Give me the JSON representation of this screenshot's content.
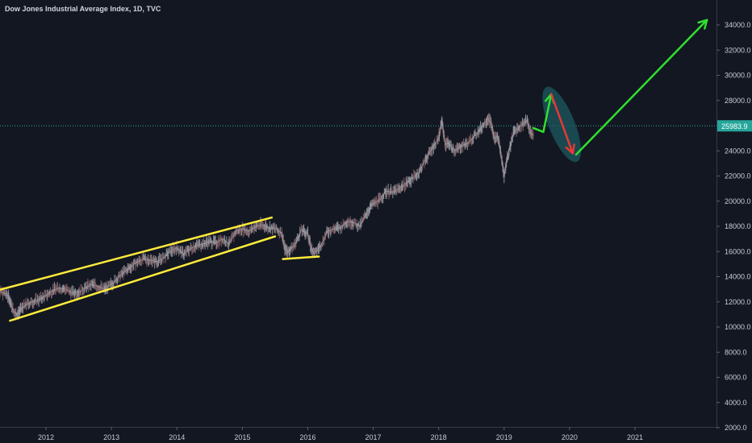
{
  "header": {
    "title": "Dow Jones Industrial Average Index, 1D, TVC"
  },
  "colors": {
    "background": "#131722",
    "axis_text": "#c8cbd3",
    "price_line": "#26a69a",
    "price_label_bg": "#26a69a",
    "candles": "#8f939c",
    "channel": "#ffeb3b",
    "arrow_up": "#2fe02f",
    "arrow_down": "#e53935",
    "ellipse": "#1e5a60"
  },
  "chart_data": {
    "type": "line",
    "title": "Dow Jones Industrial Average Index, 1D, TVC",
    "xlabel": "",
    "ylabel": "",
    "x_ticks": [
      "2012",
      "2013",
      "2014",
      "2015",
      "2016",
      "2017",
      "2018",
      "2019",
      "2020",
      "2021"
    ],
    "y_ticks": [
      "2000.0",
      "4000.0",
      "6000.0",
      "8000.0",
      "10000.0",
      "12000.0",
      "14000.0",
      "16000.0",
      "18000.0",
      "20000.0",
      "22000.0",
      "24000.0",
      "26000.0",
      "28000.0",
      "30000.0",
      "32000.0",
      "34000.0"
    ],
    "xlim": [
      2011.25,
      2022.2
    ],
    "ylim": [
      2000,
      35500
    ],
    "grid": false,
    "current_price": 25983.9,
    "current_price_label": "25983.9",
    "series": [
      {
        "points": [
          [
            2011.25,
            12500
          ],
          [
            2011.3,
            12800
          ],
          [
            2011.4,
            12600
          ],
          [
            2011.45,
            12100
          ],
          [
            2011.5,
            11300
          ],
          [
            2011.55,
            11000
          ],
          [
            2011.62,
            11400
          ],
          [
            2011.7,
            11800
          ],
          [
            2011.8,
            12000
          ],
          [
            2011.9,
            12200
          ],
          [
            2012.0,
            12500
          ],
          [
            2012.1,
            12900
          ],
          [
            2012.2,
            13100
          ],
          [
            2012.3,
            13000
          ],
          [
            2012.4,
            12700
          ],
          [
            2012.5,
            12800
          ],
          [
            2012.6,
            13100
          ],
          [
            2012.7,
            13400
          ],
          [
            2012.8,
            13200
          ],
          [
            2012.9,
            13000
          ],
          [
            2013.0,
            13400
          ],
          [
            2013.1,
            13900
          ],
          [
            2013.2,
            14400
          ],
          [
            2013.3,
            14800
          ],
          [
            2013.4,
            15200
          ],
          [
            2013.5,
            15400
          ],
          [
            2013.6,
            15300
          ],
          [
            2013.7,
            15200
          ],
          [
            2013.8,
            15500
          ],
          [
            2013.9,
            16000
          ],
          [
            2014.0,
            16300
          ],
          [
            2014.1,
            15800
          ],
          [
            2014.2,
            16200
          ],
          [
            2014.3,
            16500
          ],
          [
            2014.4,
            16600
          ],
          [
            2014.5,
            16800
          ],
          [
            2014.6,
            16700
          ],
          [
            2014.7,
            17000
          ],
          [
            2014.8,
            16600
          ],
          [
            2014.9,
            17600
          ],
          [
            2015.0,
            17800
          ],
          [
            2015.1,
            17600
          ],
          [
            2015.2,
            18000
          ],
          [
            2015.3,
            18100
          ],
          [
            2015.4,
            17900
          ],
          [
            2015.5,
            17800
          ],
          [
            2015.6,
            17500
          ],
          [
            2015.65,
            16200
          ],
          [
            2015.7,
            16000
          ],
          [
            2015.8,
            16500
          ],
          [
            2015.9,
            17700
          ],
          [
            2016.0,
            17400
          ],
          [
            2016.05,
            16300
          ],
          [
            2016.1,
            15800
          ],
          [
            2016.2,
            16500
          ],
          [
            2016.3,
            17600
          ],
          [
            2016.4,
            17800
          ],
          [
            2016.5,
            17900
          ],
          [
            2016.6,
            18400
          ],
          [
            2016.7,
            18300
          ],
          [
            2016.8,
            18000
          ],
          [
            2016.9,
            19100
          ],
          [
            2017.0,
            19800
          ],
          [
            2017.1,
            20100
          ],
          [
            2017.2,
            20800
          ],
          [
            2017.3,
            20700
          ],
          [
            2017.4,
            21000
          ],
          [
            2017.5,
            21400
          ],
          [
            2017.6,
            21800
          ],
          [
            2017.7,
            22300
          ],
          [
            2017.8,
            23300
          ],
          [
            2017.9,
            24200
          ],
          [
            2018.0,
            25000
          ],
          [
            2018.05,
            26400
          ],
          [
            2018.1,
            24500
          ],
          [
            2018.15,
            24600
          ],
          [
            2018.25,
            24000
          ],
          [
            2018.35,
            24400
          ],
          [
            2018.45,
            24600
          ],
          [
            2018.55,
            25200
          ],
          [
            2018.65,
            25800
          ],
          [
            2018.75,
            26600
          ],
          [
            2018.8,
            26200
          ],
          [
            2018.85,
            25000
          ],
          [
            2018.9,
            25200
          ],
          [
            2018.95,
            23800
          ],
          [
            2019.0,
            22000
          ],
          [
            2019.05,
            23500
          ],
          [
            2019.15,
            25500
          ],
          [
            2019.25,
            26000
          ],
          [
            2019.35,
            26400
          ],
          [
            2019.4,
            25500
          ],
          [
            2019.45,
            25200
          ]
        ]
      }
    ],
    "annotations": {
      "channel_upper": [
        [
          2011.25,
          12900
        ],
        [
          2015.45,
          18700
        ]
      ],
      "channel_lower": [
        [
          2011.45,
          10500
        ],
        [
          2015.5,
          17200
        ]
      ],
      "bottom_support": [
        [
          2015.62,
          15400
        ],
        [
          2016.17,
          15600
        ]
      ],
      "arrow_small_up": [
        [
          2019.45,
          25800
        ],
        [
          2019.6,
          25500
        ],
        [
          2019.72,
          28500
        ]
      ],
      "arrow_down": [
        [
          2019.72,
          28500
        ],
        [
          2020.05,
          23800
        ]
      ],
      "ellipse_center": [
        2019.88,
        26100
      ],
      "arrow_big_up": [
        [
          2020.1,
          23700
        ],
        [
          2022.1,
          34400
        ]
      ]
    }
  }
}
